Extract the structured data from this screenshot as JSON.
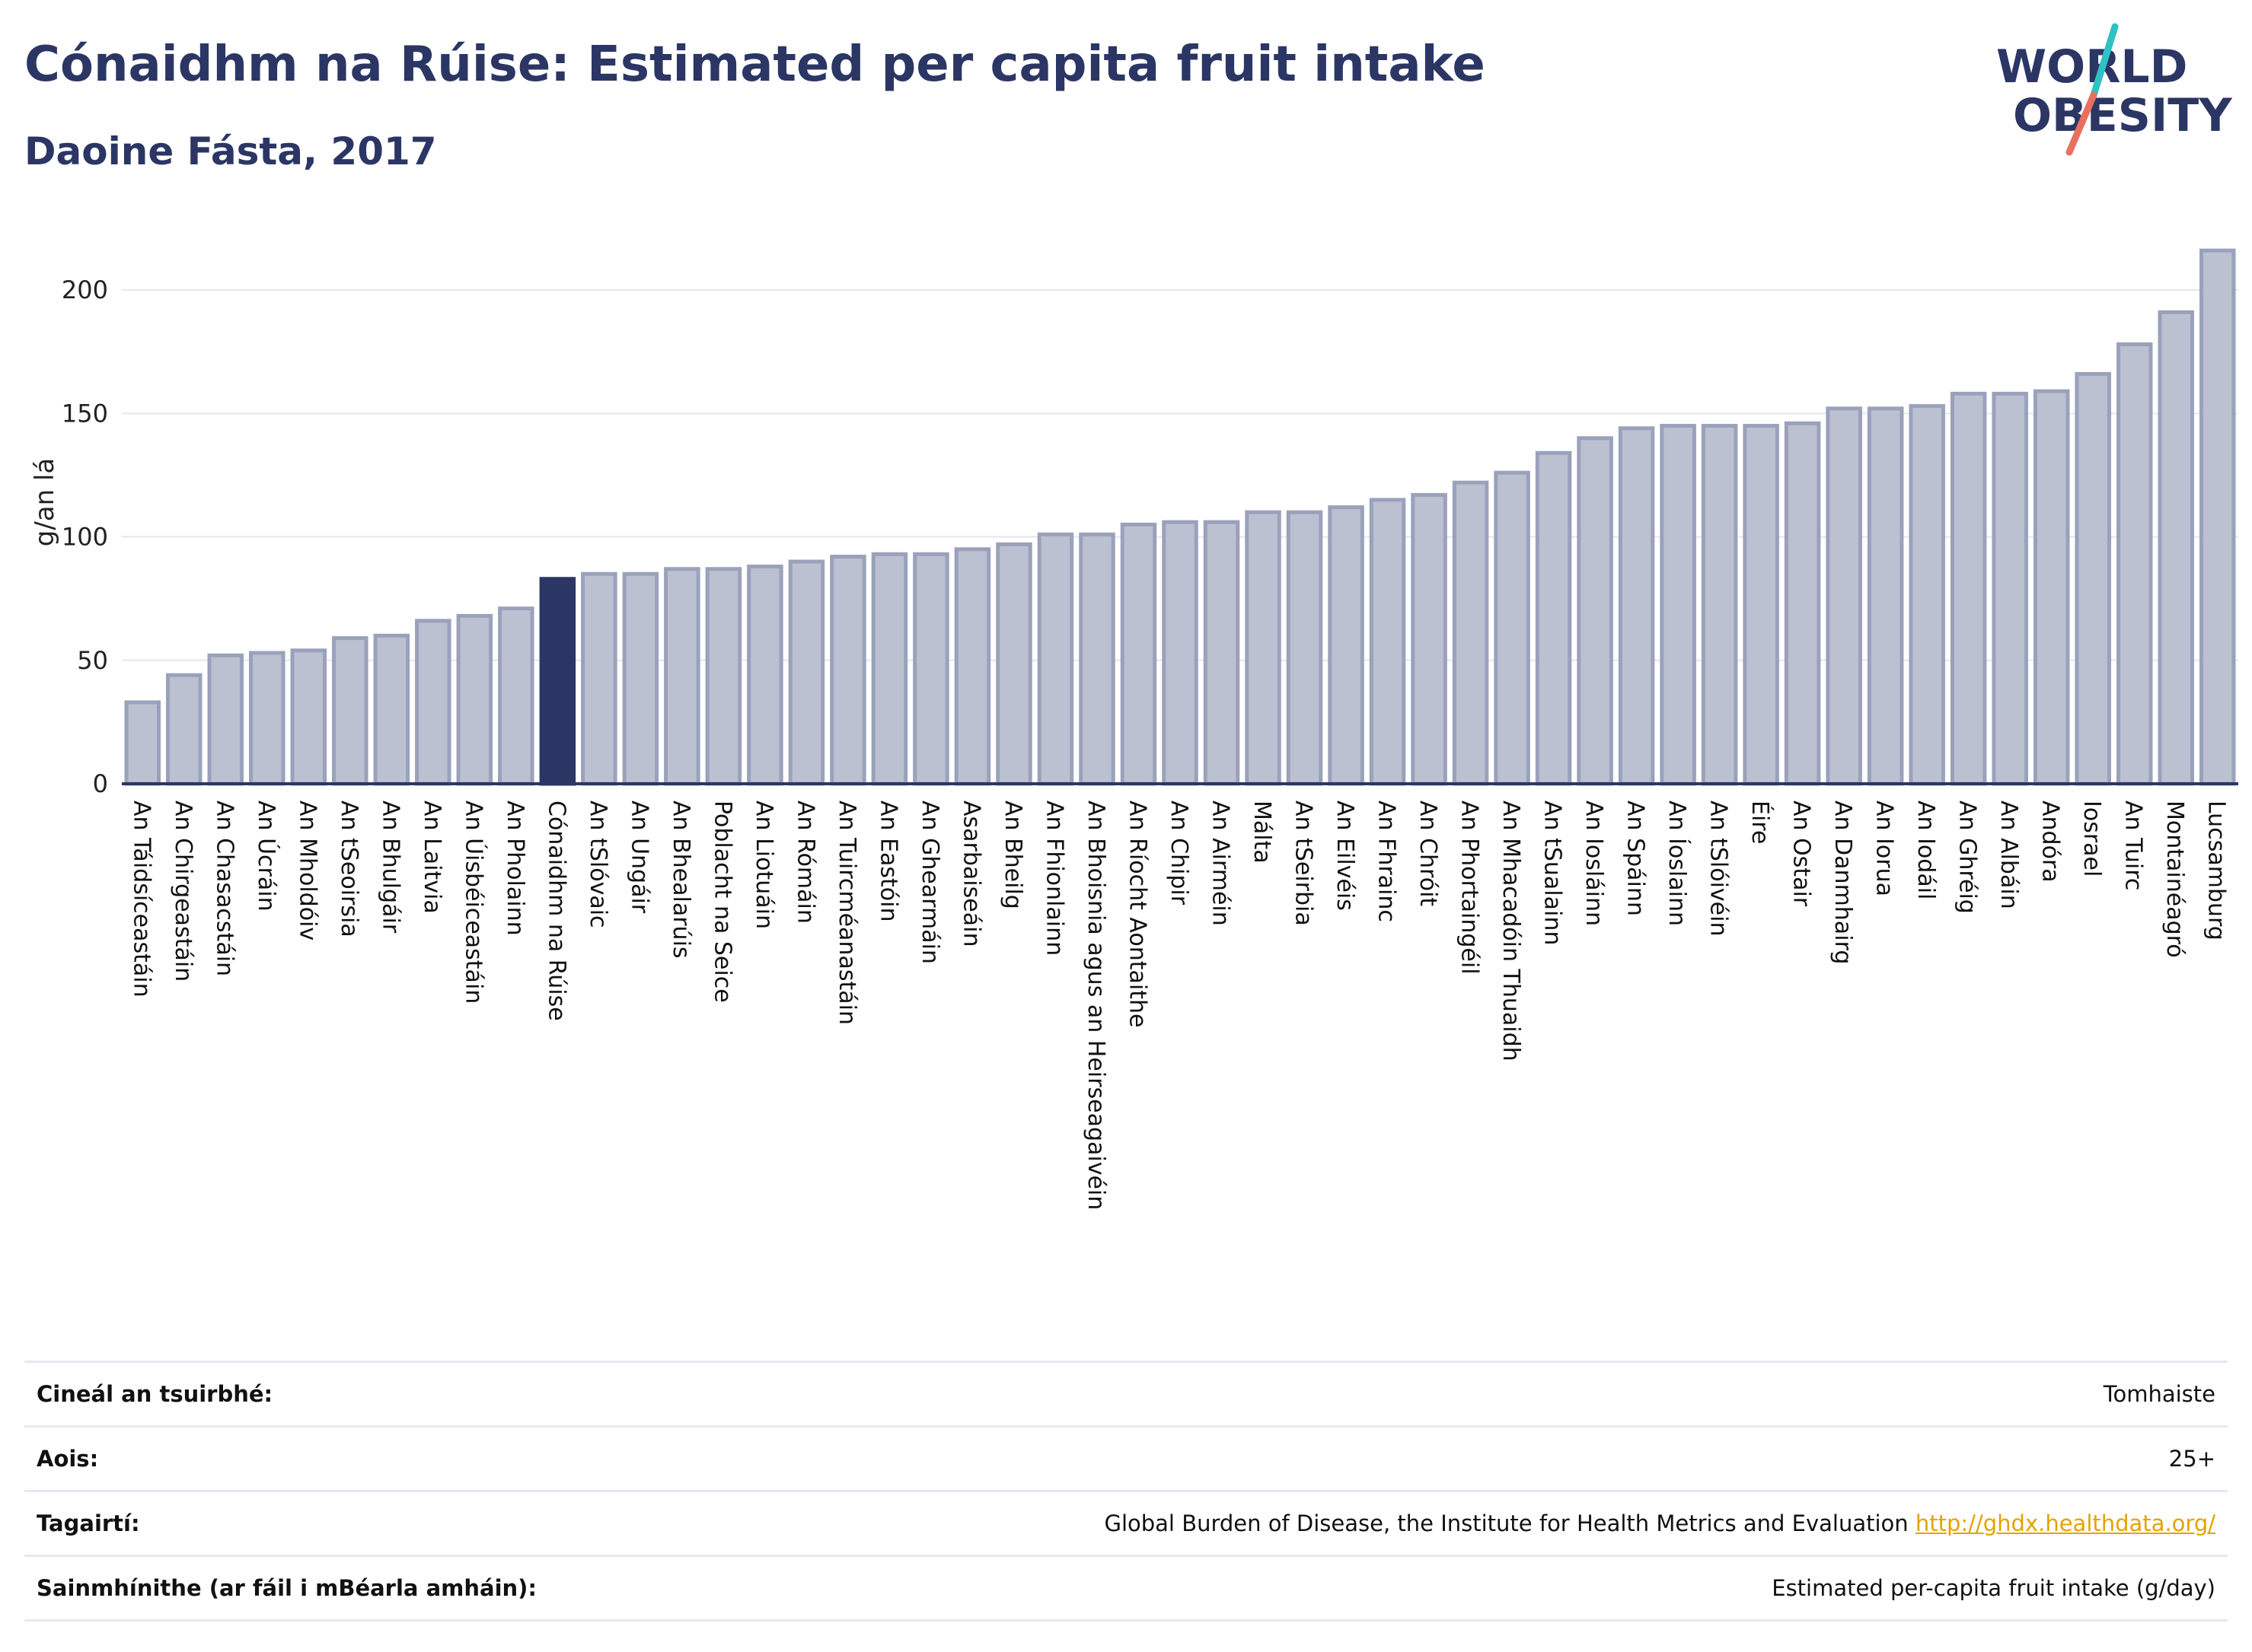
{
  "header": {
    "title": "Cónaidhm na Rúise: Estimated per capita fruit intake",
    "subtitle": "Daoine Fásta, 2017"
  },
  "logo": {
    "line1": "WORLD",
    "line2": "OBESITY",
    "accent_teal": "#2fc1c3",
    "accent_coral": "#e8705f",
    "text_color": "#2b3664"
  },
  "colors": {
    "bar": "#bcc1d1",
    "bar_border": "#9aa1bb",
    "highlight": "#2b3664",
    "axis": "#2b3664",
    "grid": "#e6e6ec"
  },
  "chart_data": {
    "type": "bar",
    "ylabel": "g/an lá",
    "ylim": [
      0,
      225
    ],
    "yticks": [
      0,
      50,
      100,
      150,
      200
    ],
    "grid": true,
    "highlight_category": "Cónaidhm na Rúise",
    "categories": [
      "An Táidsíceastáin",
      "An Chirgeastáin",
      "An Chasacstáin",
      "An Úcráin",
      "An Mholdóiv",
      "An tSeoirsia",
      "An Bhulgáir",
      "An Laitvia",
      "An Úisbéiceastáin",
      "An Pholainn",
      "Cónaidhm na Rúise",
      "An tSlóvaic",
      "An Ungáir",
      "An Bhealarúis",
      "Poblacht na Seice",
      "An Liotuáin",
      "An Rómáin",
      "An Tuircméanastáin",
      "An Eastóin",
      "An Ghearmáin",
      "Asarbaiseáin",
      "An Bheilg",
      "An Fhionlainn",
      "An Bhoisnia agus an Heirseagaivéin",
      "An Ríocht Aontaithe",
      "An Chipir",
      "An Airméin",
      "Málta",
      "An tSeirbia",
      "An Eilvéis",
      "An Fhrainc",
      "An Chróit",
      "An Phortaingéil",
      "An Mhacadóin Thuaidh",
      "An tSualainn",
      "An Iosláinn",
      "An Spáinn",
      "An Íoslainn",
      "An tSlóivéin",
      "Éire",
      "An Ostair",
      "An Danmhairg",
      "An Iorua",
      "An Iodáil",
      "An Ghréig",
      "An Albáin",
      "Andóra",
      "Iosrael",
      "An Tuirc",
      "Montainéagró",
      "Lucsamburg"
    ],
    "values": [
      33,
      44,
      52,
      53,
      54,
      59,
      60,
      66,
      68,
      71,
      83,
      85,
      85,
      87,
      87,
      88,
      90,
      92,
      93,
      93,
      95,
      97,
      101,
      101,
      105,
      106,
      106,
      110,
      110,
      112,
      115,
      117,
      122,
      126,
      134,
      140,
      144,
      145,
      145,
      145,
      146,
      152,
      152,
      153,
      158,
      158,
      159,
      166,
      178,
      191,
      216
    ]
  },
  "info": {
    "survey_label": "Cineál an tsuirbhé:",
    "survey_value": "Tomhaiste",
    "age_label": "Aois:",
    "age_value": "25+",
    "refs_label": "Tagairtí:",
    "refs_value": "Global Burden of Disease, the Institute for Health Metrics and Evaluation",
    "refs_link": "http://ghdx.healthdata.org/",
    "def_label": "Sainmhínithe (ar fáil i mBéarla amháin):",
    "def_value": "Estimated per-capita fruit intake (g/day)"
  }
}
